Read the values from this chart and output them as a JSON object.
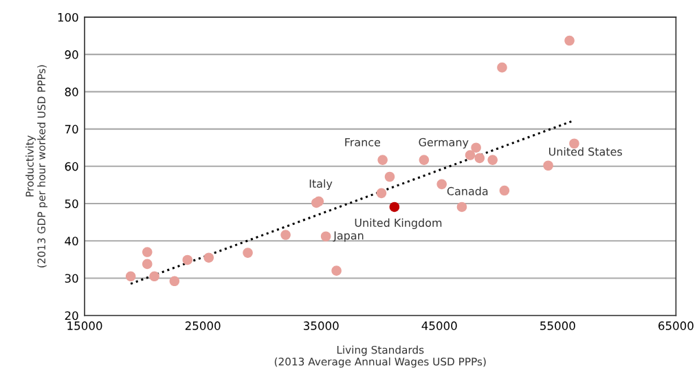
{
  "chart_data": {
    "type": "scatter",
    "xlabel": "Living Standards\n(2013 Average Annual Wages USD PPPs)",
    "ylabel": "Productivity\n(2013 GDP per hour worked USD PPPs)",
    "xlim": [
      15000,
      65000
    ],
    "xticks": [
      15000,
      25000,
      35000,
      45000,
      55000,
      65000
    ],
    "ylim": [
      20,
      100
    ],
    "yticks": [
      20,
      30,
      40,
      50,
      60,
      70,
      80,
      90,
      100
    ],
    "grid": "y",
    "series": [
      {
        "marker": "circle",
        "x": [
          18900,
          20300,
          20300,
          20900,
          22600,
          23700,
          25500,
          28800,
          32000,
          34600,
          34800,
          35400,
          36300,
          40100,
          40200,
          40800,
          41200,
          43700,
          45200,
          46900,
          47600,
          48100,
          48400,
          49500,
          50300,
          50500,
          54200,
          56000,
          56400
        ],
        "values": [
          30.5,
          37.0,
          33.8,
          30.5,
          29.2,
          34.9,
          35.5,
          36.8,
          41.6,
          50.2,
          50.6,
          41.2,
          32.0,
          52.8,
          61.7,
          57.2,
          49.1,
          61.7,
          55.2,
          49.1,
          63.0,
          65.0,
          62.2,
          61.7,
          86.5,
          53.5,
          60.2,
          93.7,
          66.1
        ],
        "colors": [
          "#e8a09a",
          "#e8a09a",
          "#e8a09a",
          "#e8a09a",
          "#e8a09a",
          "#e8a09a",
          "#e8a09a",
          "#e8a09a",
          "#e8a09a",
          "#e8a09a",
          "#e8a09a",
          "#e8a09a",
          "#e8a09a",
          "#e8a09a",
          "#e8a09a",
          "#e8a09a",
          "#c00000",
          "#e8a09a",
          "#e8a09a",
          "#e8a09a",
          "#e8a09a",
          "#e8a09a",
          "#e8a09a",
          "#e8a09a",
          "#e8a09a",
          "#e8a09a",
          "#e8a09a",
          "#e8a09a",
          "#e8a09a"
        ]
      },
      {
        "type": "line",
        "x": [
          18900,
          56300
        ],
        "values": [
          28.5,
          72.2
        ],
        "color": "#000000",
        "line_style": "dotted",
        "marker": "none"
      }
    ],
    "annotations": [
      {
        "text": "France",
        "x": 40200,
        "y": 61.7
      },
      {
        "text": "Germany",
        "x": 43700,
        "y": 61.7
      },
      {
        "text": "Italy",
        "x": 34800,
        "y": 50.6
      },
      {
        "text": "Japan",
        "x": 35400,
        "y": 41.2
      },
      {
        "text": "United Kingdom",
        "x": 41200,
        "y": 49.1
      },
      {
        "text": "Canada",
        "x": 46900,
        "y": 49.1
      },
      {
        "text": "United States",
        "x": 54200,
        "y": 60.2
      }
    ]
  }
}
